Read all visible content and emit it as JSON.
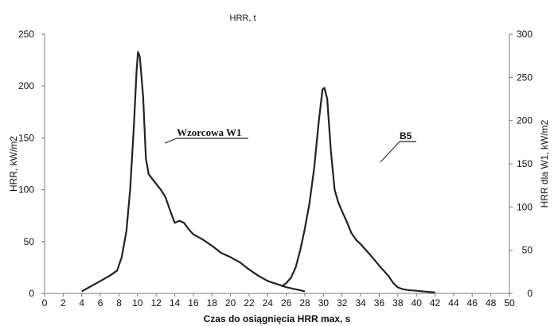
{
  "chart_data": {
    "type": "line",
    "title": "HRR, t",
    "xlabel": "Czas do osiągnięcia HRR max, s",
    "ylabel_left": "HRR, kW/m2",
    "ylabel_right": "HRR dla W1, kW/m2",
    "xlim": [
      0,
      50
    ],
    "ylim_left": [
      0,
      250
    ],
    "ylim_right": [
      0,
      300
    ],
    "x_ticks": [
      0,
      2,
      4,
      6,
      8,
      10,
      12,
      14,
      16,
      18,
      20,
      22,
      24,
      26,
      28,
      30,
      32,
      34,
      36,
      38,
      40,
      42,
      44,
      46,
      48,
      50
    ],
    "y_ticks_left": [
      0,
      50,
      100,
      150,
      200,
      250
    ],
    "y_ticks_right": [
      0,
      50,
      100,
      150,
      200,
      250,
      300
    ],
    "grid": false,
    "series": [
      {
        "name": "Wzorcowa W1",
        "axis": "left",
        "x": [
          4,
          5,
          6,
          7,
          7.8,
          8.3,
          8.8,
          9.2,
          9.6,
          9.9,
          10.05,
          10.25,
          10.6,
          10.9,
          11.2,
          11.8,
          12.5,
          13,
          13.5,
          14,
          14.5,
          15,
          15.5,
          16,
          17,
          18,
          19,
          20,
          21,
          22,
          23,
          24,
          25,
          26,
          27,
          28
        ],
        "y": [
          2,
          7,
          12,
          17,
          22,
          35,
          60,
          100,
          160,
          215,
          233,
          228,
          190,
          130,
          115,
          108,
          100,
          93,
          80,
          68,
          70,
          68,
          62,
          57,
          52,
          46,
          39,
          35,
          30,
          23,
          17,
          12,
          9,
          6,
          4,
          2
        ]
      },
      {
        "name": "B5",
        "axis": "right",
        "x": [
          25.5,
          26,
          26.5,
          27,
          27.5,
          28,
          28.5,
          29,
          29.5,
          29.9,
          30.1,
          30.4,
          30.8,
          31.2,
          31.6,
          32,
          32.5,
          33,
          33.5,
          34,
          35,
          36,
          37,
          37.5,
          38,
          38.5,
          39,
          40,
          41,
          42
        ],
        "y": [
          8,
          12,
          18,
          30,
          50,
          75,
          105,
          145,
          200,
          236,
          238,
          225,
          165,
          120,
          105,
          95,
          83,
          70,
          62,
          57,
          45,
          32,
          20,
          12,
          7,
          5,
          4,
          3,
          2,
          1
        ]
      }
    ],
    "annotations": [
      {
        "text": "Wzorcowa W1",
        "series": "Wzorcowa W1"
      },
      {
        "text": "B5",
        "series": "B5"
      }
    ]
  }
}
